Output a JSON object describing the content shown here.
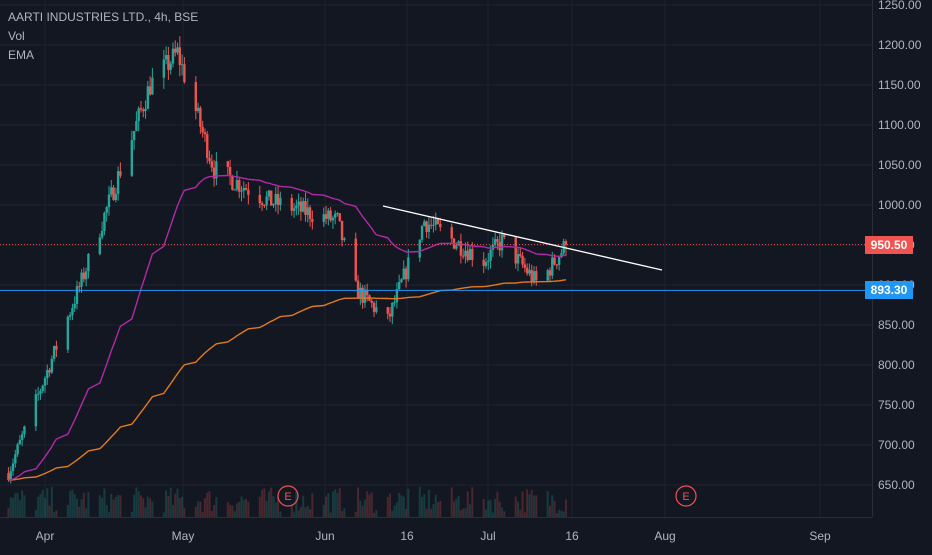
{
  "legend": {
    "symbol": "AARTI INDUSTRIES LTD., 4h, BSE",
    "vol": "Vol",
    "ema": "EMA"
  },
  "colors": {
    "background": "#131722",
    "grid": "#1f2330",
    "up": "#26a69a",
    "down": "#ef5350",
    "ema_fast": "#b12aa6",
    "ema_slow": "#e07a1f",
    "trendline": "#ffffff",
    "support": "#2196f3",
    "last_price": "#f05350",
    "axis_text": "#b2b5be"
  },
  "chart_data": {
    "type": "candlestick",
    "y_axis": {
      "ticks": [
        "1250.00",
        "1200.00",
        "1150.00",
        "1100.00",
        "1050.00",
        "1000.00",
        "950.00",
        "900.00",
        "850.00",
        "800.00",
        "750.00",
        "700.00",
        "650.00"
      ],
      "range": [
        620,
        1260
      ]
    },
    "x_axis": {
      "ticks": [
        "Apr",
        "May",
        "Jun",
        "16",
        "Jul",
        "16",
        "Aug",
        "Sep"
      ]
    },
    "last_price": {
      "value": 950.5,
      "label": "950.50"
    },
    "support_line": {
      "value": 893.3,
      "label": "893.30"
    },
    "earnings_markers": [
      "E",
      "E"
    ],
    "key_points": [
      {
        "date": "2020-03-24",
        "close": 665
      },
      {
        "date": "2020-04-09",
        "close": 905
      },
      {
        "date": "2020-04-24",
        "close": 1150
      },
      {
        "date": "2020-04-30",
        "close": 1190
      },
      {
        "date": "2020-05-08",
        "close": 1045
      },
      {
        "date": "2020-05-20",
        "close": 1005
      },
      {
        "date": "2020-06-04",
        "close": 980
      },
      {
        "date": "2020-06-08",
        "close": 895
      },
      {
        "date": "2020-06-15",
        "close": 855
      },
      {
        "date": "2020-06-23",
        "close": 980
      },
      {
        "date": "2020-07-06",
        "close": 930
      },
      {
        "date": "2020-07-10",
        "close": 955
      },
      {
        "date": "2020-07-18",
        "close": 900
      },
      {
        "date": "2020-07-24",
        "close": 950.5
      }
    ]
  }
}
